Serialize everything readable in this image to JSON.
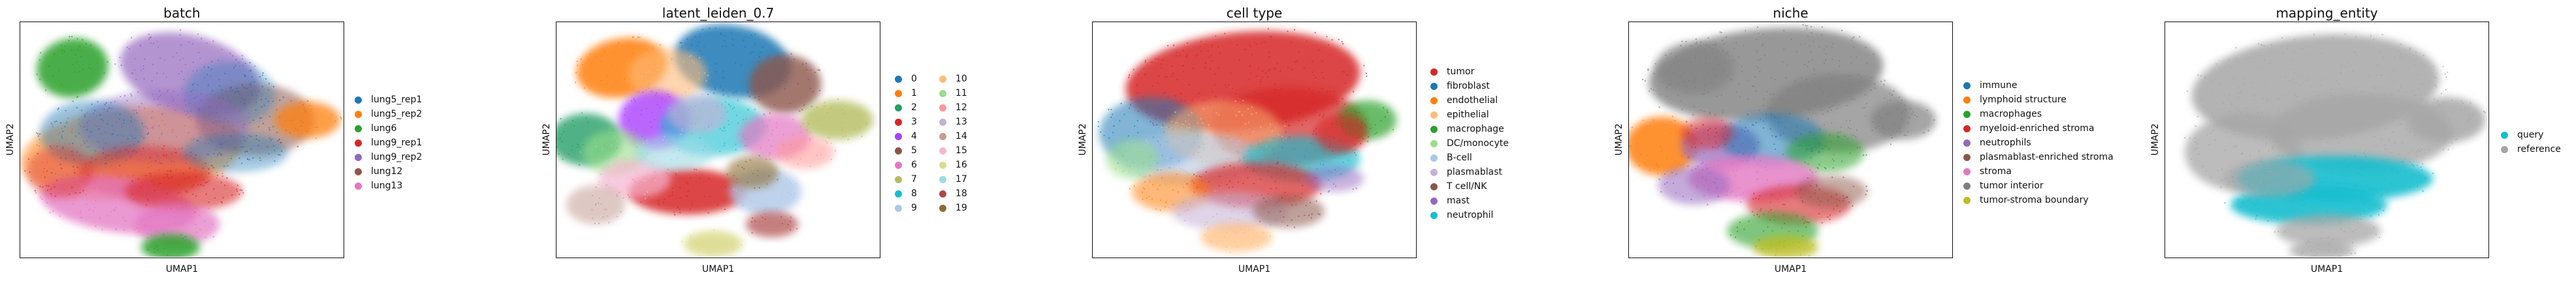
{
  "chart_data": [
    {
      "type": "scatter",
      "title": "batch",
      "xlabel": "UMAP1",
      "ylabel": "UMAP2",
      "legend_position": "right",
      "categories": [
        "lung5_rep1",
        "lung5_rep2",
        "lung6",
        "lung9_rep1",
        "lung9_rep2",
        "lung12",
        "lung13"
      ],
      "colors": [
        "#1f77b4",
        "#ff7f0e",
        "#2ca02c",
        "#d62728",
        "#9467bd",
        "#8c564b",
        "#e377c2"
      ]
    },
    {
      "type": "scatter",
      "title": "latent_leiden_0.7",
      "xlabel": "UMAP1",
      "ylabel": "UMAP2",
      "legend_position": "right",
      "categories": [
        "0",
        "1",
        "2",
        "3",
        "4",
        "5",
        "6",
        "7",
        "8",
        "9",
        "10",
        "11",
        "12",
        "13",
        "14",
        "15",
        "16",
        "17",
        "18",
        "19"
      ],
      "colors": [
        "#1f77b4",
        "#ff7f0e",
        "#279e68",
        "#d62728",
        "#aa40fc",
        "#8c564b",
        "#e377c2",
        "#b5bd61",
        "#17becf",
        "#aec7e8",
        "#ffbb78",
        "#98df8a",
        "#ff9896",
        "#c5b0d5",
        "#c49c94",
        "#f7b6d2",
        "#dbdb8d",
        "#9edae5",
        "#ad494a",
        "#8c6d31"
      ]
    },
    {
      "type": "scatter",
      "title": "cell type",
      "xlabel": "UMAP1",
      "ylabel": "UMAP2",
      "legend_position": "right",
      "categories": [
        "tumor",
        "fibroblast",
        "endothelial",
        "epithelial",
        "macrophage",
        "DC/monocyte",
        "B-cell",
        "plasmablast",
        "T cell/NK",
        "mast",
        "neutrophil"
      ],
      "colors": [
        "#d62728",
        "#1f77b4",
        "#ff7f0e",
        "#ffbb78",
        "#2ca02c",
        "#98df8a",
        "#aec7e8",
        "#c5b0d5",
        "#8c564b",
        "#9467bd",
        "#17becf"
      ]
    },
    {
      "type": "scatter",
      "title": "niche",
      "xlabel": "UMAP1",
      "ylabel": "UMAP2",
      "legend_position": "right",
      "categories": [
        "immune",
        "lymphoid structure",
        "macrophages",
        "myeloid-enriched stroma",
        "neutrophils",
        "plasmablast-enriched stroma",
        "stroma",
        "tumor interior",
        "tumor-stroma boundary"
      ],
      "colors": [
        "#1f77b4",
        "#ff7f0e",
        "#2ca02c",
        "#d62728",
        "#9467bd",
        "#8c564b",
        "#e377c2",
        "#7f7f7f",
        "#bcbd22"
      ]
    },
    {
      "type": "scatter",
      "title": "mapping_entity",
      "xlabel": "UMAP1",
      "ylabel": "UMAP2",
      "legend_position": "right",
      "categories": [
        "query",
        "reference"
      ],
      "colors": [
        "#17becf",
        "#a6a6a6"
      ]
    }
  ]
}
